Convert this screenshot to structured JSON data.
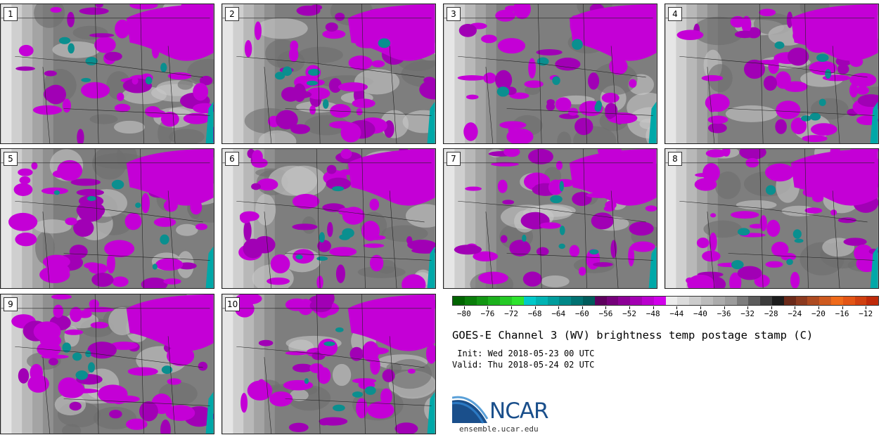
{
  "panels": [
    {
      "label": "1",
      "seed": 11
    },
    {
      "label": "2",
      "seed": 23
    },
    {
      "label": "3",
      "seed": 37
    },
    {
      "label": "4",
      "seed": 41
    },
    {
      "label": "5",
      "seed": 53
    },
    {
      "label": "6",
      "seed": 67
    },
    {
      "label": "7",
      "seed": 71
    },
    {
      "label": "8",
      "seed": 83
    },
    {
      "label": "9",
      "seed": 97
    },
    {
      "label": "10",
      "seed": 103
    }
  ],
  "colorbar": {
    "colors": [
      "#006400",
      "#0a7d0a",
      "#139613",
      "#1cb01c",
      "#25c925",
      "#2ee32e",
      "#00c9c9",
      "#00b3b3",
      "#009d9d",
      "#008787",
      "#007171",
      "#005b5b",
      "#5e005e",
      "#75007a",
      "#8c0096",
      "#a300b2",
      "#ba00ce",
      "#d100ea",
      "#ececec",
      "#dcdcdc",
      "#cccccc",
      "#bcbcbc",
      "#acacac",
      "#9c9c9c",
      "#7c7c7c",
      "#5c5c5c",
      "#3c3c3c",
      "#1c1c1c",
      "#6b2a1a",
      "#8c3a1f",
      "#ad4a20",
      "#ce5a1f",
      "#ef6a1a",
      "#e35515",
      "#d04010",
      "#bf2a0a"
    ],
    "tick_labels": [
      "-80",
      "-76",
      "-72",
      "-68",
      "-64",
      "-60",
      "-56",
      "-52",
      "-48",
      "-44",
      "-40",
      "-36",
      "-32",
      "-28",
      "-24",
      "-20",
      "-16",
      "-12"
    ],
    "min": -82,
    "max": -10
  },
  "title": "GOES-E Channel 3 (WV) brightness temp postage stamp (C)",
  "init": " Init: Wed 2018-05-23 00 UTC",
  "valid": "Valid: Thu 2018-05-24 02 UTC",
  "logo_text": "NCAR",
  "site": "ensemble.ucar.edu"
}
